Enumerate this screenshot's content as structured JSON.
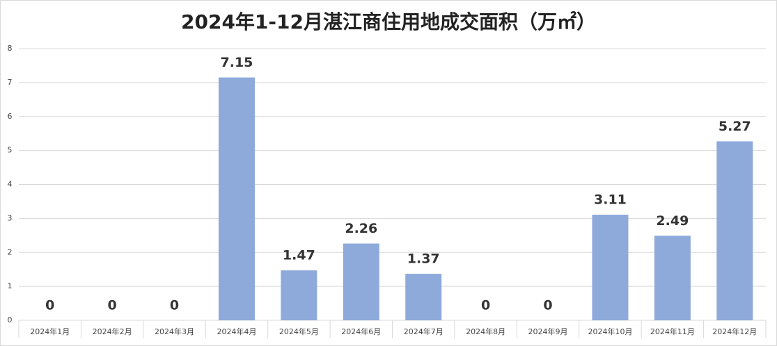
{
  "chart_data": {
    "type": "bar",
    "title": "2024年1-12月湛江商住用地成交面积（万㎡）",
    "categories": [
      "2024年1月",
      "2024年2月",
      "2024年3月",
      "2024年4月",
      "2024年5月",
      "2024年6月",
      "2024年7月",
      "2024年8月",
      "2024年9月",
      "2024年10月",
      "2024年11月",
      "2024年12月"
    ],
    "values": [
      0,
      0,
      0,
      7.15,
      1.47,
      2.26,
      1.37,
      0,
      0,
      3.11,
      2.49,
      5.27
    ],
    "color": "#8eaadb",
    "ylim": [
      0,
      8
    ],
    "yticks": [
      0,
      1,
      2,
      3,
      4,
      5,
      6,
      7,
      8
    ],
    "grid": true
  }
}
